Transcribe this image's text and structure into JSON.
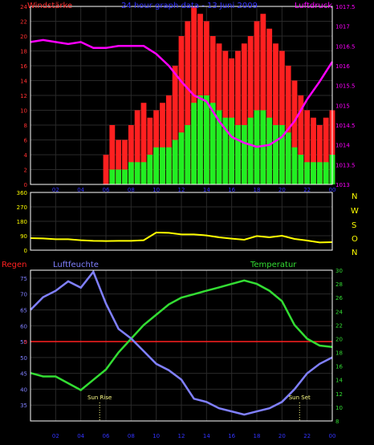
{
  "colors": {
    "background": "#000000",
    "frame": "#ffffff",
    "grid": "#2a2a2a",
    "wind_gust": "#ff2020",
    "wind_avg": "#22ee22",
    "wind_axis": "#ff3030",
    "pressure": "#ff00ff",
    "direction": "#ffff00",
    "humidity": "#8080ff",
    "temperature": "#33dd33",
    "rain": "#ff2020",
    "title": "#3333ff",
    "sun": "#ffff88",
    "time_axis": "#3333ff"
  },
  "header": {
    "left": "Windstärke",
    "center": "24 hour graph data - 13 Juni 2009",
    "right": "Luftdruck"
  },
  "middle": {
    "dir_labels": [
      "N",
      "W",
      "S",
      "O",
      "N"
    ]
  },
  "lower": {
    "rain_label": "Regen",
    "hum_label": "Luftfeuchte",
    "temp_label": "Temperatur",
    "sunrise_label": "Sun Rise",
    "sunset_label": "Sun Set"
  },
  "chart_data": [
    {
      "type": "bar",
      "name": "wind_pressure",
      "x_ticks": [
        "02",
        "04",
        "06",
        "08",
        "10",
        "12",
        "14",
        "16",
        "18",
        "20",
        "22",
        "00"
      ],
      "ylim_left": [
        0,
        24
      ],
      "y_ticks_left": [
        "0",
        "2",
        "4",
        "6",
        "8",
        "10",
        "12",
        "14",
        "16",
        "18",
        "20",
        "22",
        "24"
      ],
      "ylim_right": [
        1013,
        1017.5
      ],
      "y_ticks_right": [
        "1013",
        "1013.5",
        "1014",
        "1014.5",
        "1015",
        "1015.5",
        "1016",
        "1016.5",
        "1017",
        "1017.5"
      ],
      "wind_hours": [
        6.0,
        6.5,
        7.0,
        7.5,
        8.0,
        8.5,
        9.0,
        9.5,
        10.0,
        10.5,
        11.0,
        11.5,
        12.0,
        12.5,
        13.0,
        13.5,
        14.0,
        14.5,
        15.0,
        15.5,
        16.0,
        16.5,
        17.0,
        17.5,
        18.0,
        18.5,
        19.0,
        19.5,
        20.0,
        20.5,
        21.0,
        21.5,
        22.0,
        22.5,
        23.0,
        23.5,
        24.0
      ],
      "wind_avg": [
        0,
        2,
        2,
        2,
        3,
        3,
        3,
        4,
        5,
        5,
        5,
        6,
        7,
        8,
        11,
        12,
        12,
        11,
        10,
        9,
        9,
        8,
        8,
        9,
        10,
        10,
        9,
        8,
        8,
        7,
        5,
        4,
        3,
        3,
        3,
        3,
        4
      ],
      "wind_gust": [
        4,
        8,
        6,
        6,
        8,
        10,
        11,
        9,
        10,
        11,
        12,
        16,
        20,
        22,
        24,
        23,
        22,
        20,
        19,
        18,
        17,
        18,
        19,
        20,
        22,
        23,
        21,
        19,
        18,
        16,
        14,
        12,
        10,
        9,
        8,
        9,
        10
      ],
      "pressure_hours": [
        0,
        1,
        2,
        3,
        4,
        5,
        6,
        7,
        8,
        9,
        10,
        11,
        12,
        13,
        14,
        15,
        16,
        17,
        18,
        19,
        20,
        21,
        22,
        23,
        24
      ],
      "pressure": [
        1016.6,
        1016.65,
        1016.6,
        1016.55,
        1016.6,
        1016.45,
        1016.45,
        1016.5,
        1016.5,
        1016.5,
        1016.3,
        1016.0,
        1015.6,
        1015.25,
        1015.1,
        1014.6,
        1014.2,
        1014.05,
        1013.95,
        1014.0,
        1014.2,
        1014.6,
        1015.15,
        1015.6,
        1016.1
      ]
    },
    {
      "type": "line",
      "name": "wind_direction",
      "ylim": [
        0,
        360
      ],
      "y_ticks": [
        "0",
        "90",
        "180",
        "270",
        "360"
      ],
      "hours": [
        0,
        1,
        2,
        3,
        4,
        5,
        6,
        7,
        8,
        9,
        10,
        11,
        12,
        13,
        14,
        15,
        16,
        17,
        18,
        19,
        20,
        21,
        22,
        23,
        24
      ],
      "values": [
        75,
        73,
        68,
        68,
        62,
        58,
        57,
        58,
        58,
        62,
        110,
        108,
        98,
        98,
        92,
        80,
        72,
        65,
        88,
        80,
        90,
        70,
        60,
        48,
        50
      ]
    },
    {
      "type": "line",
      "name": "humidity_temperature",
      "ylim_left": [
        30,
        77.5
      ],
      "y_ticks_left": [
        "35",
        "40",
        "45",
        "50",
        "55",
        "60",
        "65",
        "70",
        "75"
      ],
      "ylim_right": [
        8,
        30
      ],
      "y_ticks_right": [
        "8",
        "10",
        "12",
        "14",
        "16",
        "18",
        "20",
        "22",
        "24",
        "26",
        "28",
        "30"
      ],
      "rain_value": "0",
      "hours": [
        0,
        1,
        2,
        3,
        4,
        5,
        6,
        7,
        8,
        9,
        10,
        11,
        12,
        13,
        14,
        15,
        16,
        17,
        18,
        19,
        20,
        21,
        22,
        23,
        24
      ],
      "humidity": [
        65,
        69,
        71,
        74,
        72,
        77,
        67,
        59,
        56,
        52,
        48,
        46,
        43,
        37,
        36,
        34,
        33,
        32,
        33,
        34,
        36,
        40,
        45,
        48,
        50
      ],
      "temperature": [
        15,
        14.5,
        14.5,
        13.5,
        12.5,
        14,
        15.5,
        18,
        20,
        22,
        23.5,
        25,
        26,
        26.5,
        27,
        27.5,
        28,
        28.5,
        28,
        27,
        25.5,
        22,
        20,
        19,
        18.8
      ],
      "sunrise_hour": 5.5,
      "sunset_hour": 21.4
    }
  ]
}
